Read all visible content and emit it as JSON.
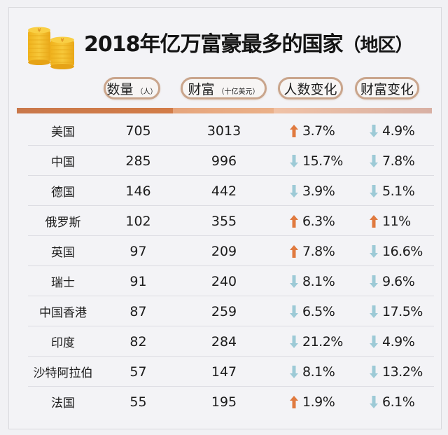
{
  "title": {
    "main": "2018年亿万富豪最多的国家",
    "suffix": "（地区）",
    "icon": "gold-coins-icon"
  },
  "headers": {
    "country": "",
    "count": {
      "label": "数量",
      "unit": "（人）"
    },
    "wealth": {
      "label": "财富",
      "unit": "（十亿美元）"
    },
    "people_change": {
      "label": "人数变化"
    },
    "wealth_change": {
      "label": "财富变化"
    }
  },
  "colors": {
    "up_arrow": "#e07a3f",
    "down_arrow": "#9dcad6",
    "pill_border": "#c9a58c",
    "bar_segment_1": "#cc7a49",
    "bar_segment_2": "#e8ab83",
    "bar_segment_3": "#e8bca6",
    "background": "#f3f3f6"
  },
  "rows": [
    {
      "country": "美国",
      "count": "705",
      "wealth": "3013",
      "people_change": {
        "dir": "up",
        "value": "3.7%"
      },
      "wealth_change": {
        "dir": "down",
        "value": "4.9%"
      }
    },
    {
      "country": "中国",
      "count": "285",
      "wealth": "996",
      "people_change": {
        "dir": "down",
        "value": "15.7%"
      },
      "wealth_change": {
        "dir": "down",
        "value": "7.8%"
      }
    },
    {
      "country": "德国",
      "count": "146",
      "wealth": "442",
      "people_change": {
        "dir": "down",
        "value": "3.9%"
      },
      "wealth_change": {
        "dir": "down",
        "value": "5.1%"
      }
    },
    {
      "country": "俄罗斯",
      "count": "102",
      "wealth": "355",
      "people_change": {
        "dir": "up",
        "value": "6.3%"
      },
      "wealth_change": {
        "dir": "up",
        "value": "11%"
      }
    },
    {
      "country": "英国",
      "count": "97",
      "wealth": "209",
      "people_change": {
        "dir": "up",
        "value": "7.8%"
      },
      "wealth_change": {
        "dir": "down",
        "value": "16.6%"
      }
    },
    {
      "country": "瑞士",
      "count": "91",
      "wealth": "240",
      "people_change": {
        "dir": "down",
        "value": "8.1%"
      },
      "wealth_change": {
        "dir": "down",
        "value": "9.6%"
      }
    },
    {
      "country": "中国香港",
      "count": "87",
      "wealth": "259",
      "people_change": {
        "dir": "down",
        "value": "6.5%"
      },
      "wealth_change": {
        "dir": "down",
        "value": "17.5%"
      }
    },
    {
      "country": "印度",
      "count": "82",
      "wealth": "284",
      "people_change": {
        "dir": "down",
        "value": "21.2%"
      },
      "wealth_change": {
        "dir": "down",
        "value": "4.9%"
      }
    },
    {
      "country": "沙特阿拉伯",
      "count": "57",
      "wealth": "147",
      "people_change": {
        "dir": "down",
        "value": "8.1%"
      },
      "wealth_change": {
        "dir": "down",
        "value": "13.2%"
      }
    },
    {
      "country": "法国",
      "count": "55",
      "wealth": "195",
      "people_change": {
        "dir": "up",
        "value": "1.9%"
      },
      "wealth_change": {
        "dir": "down",
        "value": "6.1%"
      }
    }
  ]
}
